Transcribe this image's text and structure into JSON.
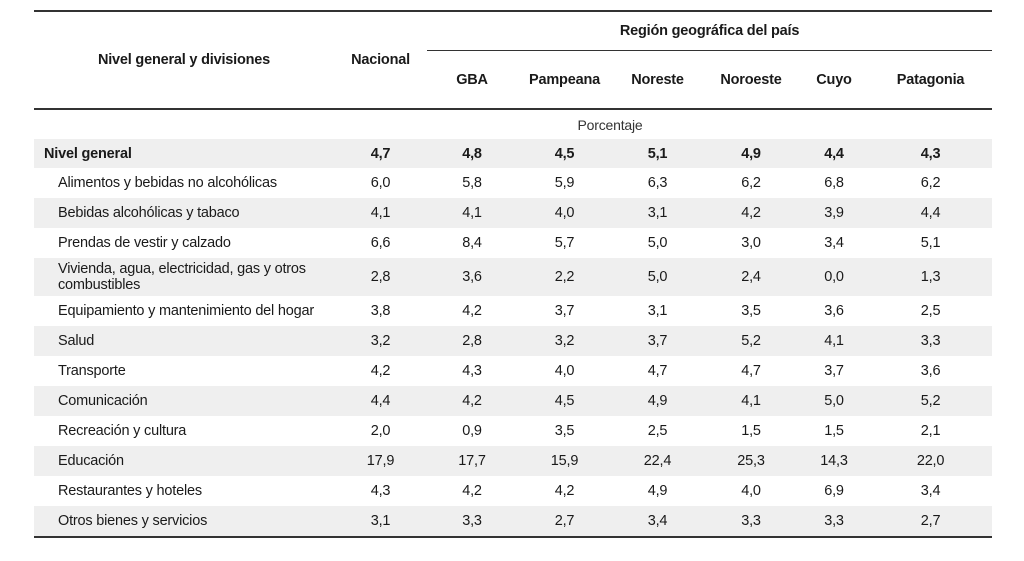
{
  "table": {
    "label_header": "Nivel general y divisiones",
    "nacional_header": "Nacional",
    "region_header": "Región geográfica del país",
    "regions": [
      "GBA",
      "Pampeana",
      "Noreste",
      "Noroeste",
      "Cuyo",
      "Patagonia"
    ],
    "unit_label": "Porcentaje",
    "general": {
      "label": "Nivel general",
      "values": [
        "4,7",
        "4,8",
        "4,5",
        "5,1",
        "4,9",
        "4,4",
        "4,3"
      ]
    },
    "rows": [
      {
        "label": "Alimentos y bebidas no alcohólicas",
        "values": [
          "6,0",
          "5,8",
          "5,9",
          "6,3",
          "6,2",
          "6,8",
          "6,2"
        ]
      },
      {
        "label": "Bebidas alcohólicas y tabaco",
        "values": [
          "4,1",
          "4,1",
          "4,0",
          "3,1",
          "4,2",
          "3,9",
          "4,4"
        ]
      },
      {
        "label": "Prendas de vestir y calzado",
        "values": [
          "6,6",
          "8,4",
          "5,7",
          "5,0",
          "3,0",
          "3,4",
          "5,1"
        ]
      },
      {
        "label": "Vivienda, agua, electricidad, gas y otros combustibles",
        "values": [
          "2,8",
          "3,6",
          "2,2",
          "5,0",
          "2,4",
          "0,0",
          "1,3"
        ]
      },
      {
        "label": "Equipamiento y mantenimiento del hogar",
        "values": [
          "3,8",
          "4,2",
          "3,7",
          "3,1",
          "3,5",
          "3,6",
          "2,5"
        ]
      },
      {
        "label": "Salud",
        "values": [
          "3,2",
          "2,8",
          "3,2",
          "3,7",
          "5,2",
          "4,1",
          "3,3"
        ]
      },
      {
        "label": "Transporte",
        "values": [
          "4,2",
          "4,3",
          "4,0",
          "4,7",
          "4,7",
          "3,7",
          "3,6"
        ]
      },
      {
        "label": "Comunicación",
        "values": [
          "4,4",
          "4,2",
          "4,5",
          "4,9",
          "4,1",
          "5,0",
          "5,2"
        ]
      },
      {
        "label": "Recreación y cultura",
        "values": [
          "2,0",
          "0,9",
          "3,5",
          "2,5",
          "1,5",
          "1,5",
          "2,1"
        ]
      },
      {
        "label": "Educación",
        "values": [
          "17,9",
          "17,7",
          "15,9",
          "22,4",
          "25,3",
          "14,3",
          "22,0"
        ]
      },
      {
        "label": "Restaurantes y hoteles",
        "values": [
          "4,3",
          "4,2",
          "4,2",
          "4,9",
          "4,0",
          "6,9",
          "3,4"
        ]
      },
      {
        "label": "Otros bienes y servicios",
        "values": [
          "3,1",
          "3,3",
          "2,7",
          "3,4",
          "3,3",
          "3,3",
          "2,7"
        ]
      }
    ]
  },
  "colors": {
    "rule": "#333333",
    "shade": "#efefef"
  }
}
